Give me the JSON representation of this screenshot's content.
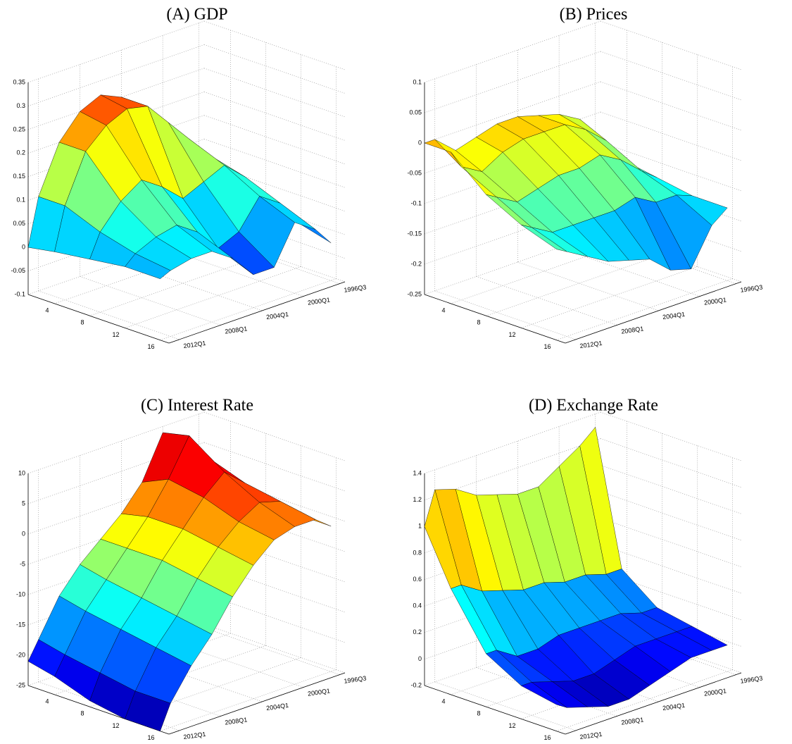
{
  "chart_data": [
    {
      "type": "surface",
      "title": "(A) GDP",
      "colormap": "jet",
      "horizons": [
        1,
        4,
        8,
        12,
        16
      ],
      "hlim": [
        1,
        17
      ],
      "hticks": [
        4,
        8,
        12,
        16
      ],
      "dates": [
        1996.5,
        1998,
        2000,
        2002,
        2004,
        2006,
        2008,
        2010,
        2012,
        2013
      ],
      "xlim": [
        1996,
        2013
      ],
      "xticks": [
        {
          "value": 1996.5,
          "label": "1996Q3"
        },
        {
          "value": 2000,
          "label": "2000Q1"
        },
        {
          "value": 2004,
          "label": "2004Q1"
        },
        {
          "value": 2008,
          "label": "2008Q1"
        },
        {
          "value": 2012,
          "label": "2012Q1"
        }
      ],
      "zlim": [
        -0.1,
        0.35
      ],
      "zticks": [
        -0.1,
        -0.05,
        0,
        0.05,
        0.1,
        0.15,
        0.2,
        0.25,
        0.3,
        0.35
      ],
      "z": [
        [
          0.05,
          0.1,
          0.15,
          0.2,
          0.25,
          0.27,
          0.25,
          0.2,
          0.1,
          0.0
        ],
        [
          0.04,
          0.1,
          0.15,
          0.2,
          0.25,
          0.26,
          0.24,
          0.2,
          0.1,
          0.01
        ],
        [
          0.02,
          0.08,
          0.12,
          0.1,
          0.08,
          0.12,
          0.15,
          0.12,
          0.07,
          0.02
        ],
        [
          0,
          0.05,
          0.08,
          0.02,
          0,
          0.05,
          0.08,
          0.07,
          0.05,
          0.03
        ],
        [
          -0.02,
          0.02,
          0.05,
          -0.03,
          -0.03,
          0.02,
          0.05,
          0.05,
          0.04,
          0.03
        ]
      ]
    },
    {
      "type": "surface",
      "title": "(B) Prices",
      "colormap": "jet",
      "horizons": [
        1,
        4,
        8,
        12,
        16
      ],
      "hlim": [
        1,
        17
      ],
      "hticks": [
        4,
        8,
        12,
        16
      ],
      "dates": [
        1996.5,
        1998,
        2000,
        2002,
        2004,
        2006,
        2008,
        2010,
        2012,
        2013
      ],
      "xlim": [
        1996,
        2013
      ],
      "xticks": [
        {
          "value": 1996.5,
          "label": "1996Q3"
        },
        {
          "value": 2000,
          "label": "2000Q1"
        },
        {
          "value": 2004,
          "label": "2004Q1"
        },
        {
          "value": 2008,
          "label": "2008Q1"
        },
        {
          "value": 2012,
          "label": "2012Q1"
        }
      ],
      "zlim": [
        -0.25,
        0.1
      ],
      "zticks": [
        -0.25,
        -0.2,
        -0.15,
        -0.1,
        -0.05,
        0,
        0.05,
        0.1
      ],
      "z": [
        [
          -0.1,
          -0.05,
          -0.03,
          -0.02,
          -0.01,
          -0.01,
          -0.02,
          -0.03,
          0,
          0
        ],
        [
          -0.11,
          -0.07,
          -0.04,
          -0.02,
          -0.02,
          -0.02,
          -0.03,
          -0.05,
          -0.03,
          0
        ],
        [
          -0.12,
          -0.1,
          -0.07,
          -0.05,
          -0.06,
          -0.06,
          -0.07,
          -0.08,
          -0.06,
          -0.05
        ],
        [
          -0.13,
          -0.12,
          -0.12,
          -0.1,
          -0.11,
          -0.11,
          -0.11,
          -0.11,
          -0.09,
          -0.08
        ],
        [
          -0.13,
          -0.15,
          -0.21,
          -0.2,
          -0.17,
          -0.16,
          -0.15,
          -0.13,
          -0.11,
          -0.1
        ]
      ]
    },
    {
      "type": "surface",
      "title": "(C) Interest Rate",
      "colormap": "jet",
      "horizons": [
        1,
        4,
        8,
        12,
        16
      ],
      "hlim": [
        1,
        17
      ],
      "hticks": [
        4,
        8,
        12,
        16
      ],
      "dates": [
        1996.5,
        1998,
        2000,
        2002,
        2004,
        2006,
        2008,
        2010,
        2012,
        2013
      ],
      "xlim": [
        1996,
        2013
      ],
      "xticks": [
        {
          "value": 1996.5,
          "label": "1996Q3"
        },
        {
          "value": 2000,
          "label": "2000Q1"
        },
        {
          "value": 2004,
          "label": "2004Q1"
        },
        {
          "value": 2008,
          "label": "2008Q1"
        },
        {
          "value": 2012,
          "label": "2012Q1"
        }
      ],
      "zlim": [
        -25,
        10
      ],
      "zticks": [
        -25,
        -20,
        -15,
        -10,
        -5,
        0,
        5,
        10
      ],
      "z": [
        [
          0,
          3,
          9,
          2,
          -2,
          -5,
          -8,
          -12,
          -18,
          -21
        ],
        [
          0,
          5,
          10,
          4,
          -1,
          -5,
          -9,
          -13,
          -19,
          -22
        ],
        [
          -1,
          3,
          6,
          3,
          -1,
          -5,
          -10,
          -14,
          -20,
          -24
        ],
        [
          -1,
          2,
          3,
          1,
          -2,
          -6,
          -11,
          -15,
          -21,
          -25
        ],
        [
          -1,
          1,
          1,
          0,
          -3,
          -7,
          -12,
          -16,
          -21,
          -25
        ]
      ]
    },
    {
      "type": "surface",
      "title": "(D) Exchange Rate",
      "colormap": "jet",
      "horizons": [
        1,
        4,
        8,
        12,
        16
      ],
      "hlim": [
        1,
        17
      ],
      "hticks": [
        4,
        8,
        12,
        16
      ],
      "dates": [
        1996.5,
        1998,
        2000,
        2002,
        2004,
        2006,
        2008,
        2010,
        2012,
        2013
      ],
      "xlim": [
        1996,
        2013
      ],
      "xticks": [
        {
          "value": 1996.5,
          "label": "1996Q3"
        },
        {
          "value": 2000,
          "label": "2000Q1"
        },
        {
          "value": 2004,
          "label": "2004Q1"
        },
        {
          "value": 2008,
          "label": "2008Q1"
        },
        {
          "value": 2012,
          "label": "2012Q1"
        }
      ],
      "zlim": [
        -0.2,
        1.4
      ],
      "zticks": [
        -0.2,
        0,
        0.2,
        0.4,
        0.6,
        0.8,
        1,
        1.2,
        1.4
      ],
      "z": [
        [
          1.3,
          1.2,
          1.1,
          1.0,
          1.0,
          1.05,
          1.1,
          1.2,
          1.25,
          1.0
        ],
        [
          0.3,
          0.3,
          0.35,
          0.35,
          0.4,
          0.4,
          0.45,
          0.5,
          0.6,
          0.6
        ],
        [
          0.1,
          0.1,
          0.15,
          0.15,
          0.15,
          0.15,
          0.1,
          0.1,
          0.2,
          0.2
        ],
        [
          0.05,
          0.05,
          0.05,
          0.05,
          0.0,
          -0.05,
          -0.05,
          0,
          0.05,
          0.05
        ],
        [
          0,
          0,
          0,
          -0.05,
          -0.1,
          -0.15,
          -0.15,
          -0.1,
          -0.05,
          0
        ]
      ]
    }
  ]
}
